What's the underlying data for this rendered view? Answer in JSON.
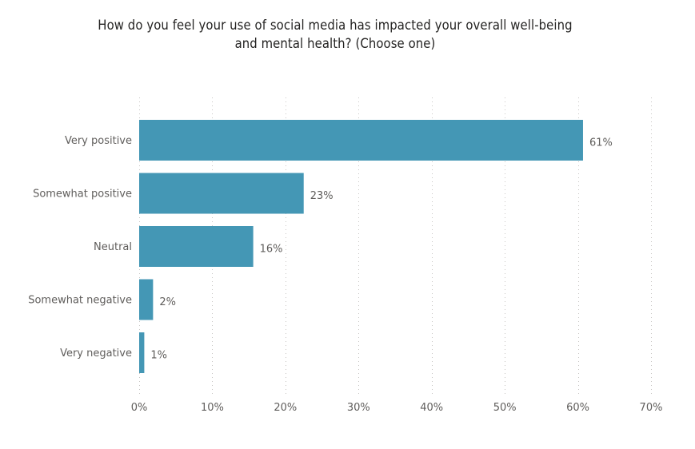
{
  "chart_data": {
    "type": "bar",
    "orientation": "horizontal",
    "title_lines": [
      "How do you feel your use of social media has impacted your overall well-being",
      "and mental health? (Choose one)"
    ],
    "categories": [
      "Very positive",
      "Somewhat positive",
      "Neutral",
      "Somewhat negative",
      "Very negative"
    ],
    "values": [
      60.7,
      22.5,
      15.6,
      1.9,
      0.7
    ],
    "data_labels": [
      "61%",
      "23%",
      "16%",
      "2%",
      "1%"
    ],
    "xlim": [
      0,
      70
    ],
    "xticks": [
      0,
      10,
      20,
      30,
      40,
      50,
      60,
      70
    ],
    "xtick_labels": [
      "0%",
      "10%",
      "20%",
      "30%",
      "40%",
      "50%",
      "60%",
      "70%"
    ],
    "xlabel": "",
    "ylabel": "",
    "grid": "vertical-dotted",
    "legend": "none",
    "bar_color": "#4497b5",
    "grid_color": "#c8c6c4",
    "text_color": "#605e5c"
  }
}
